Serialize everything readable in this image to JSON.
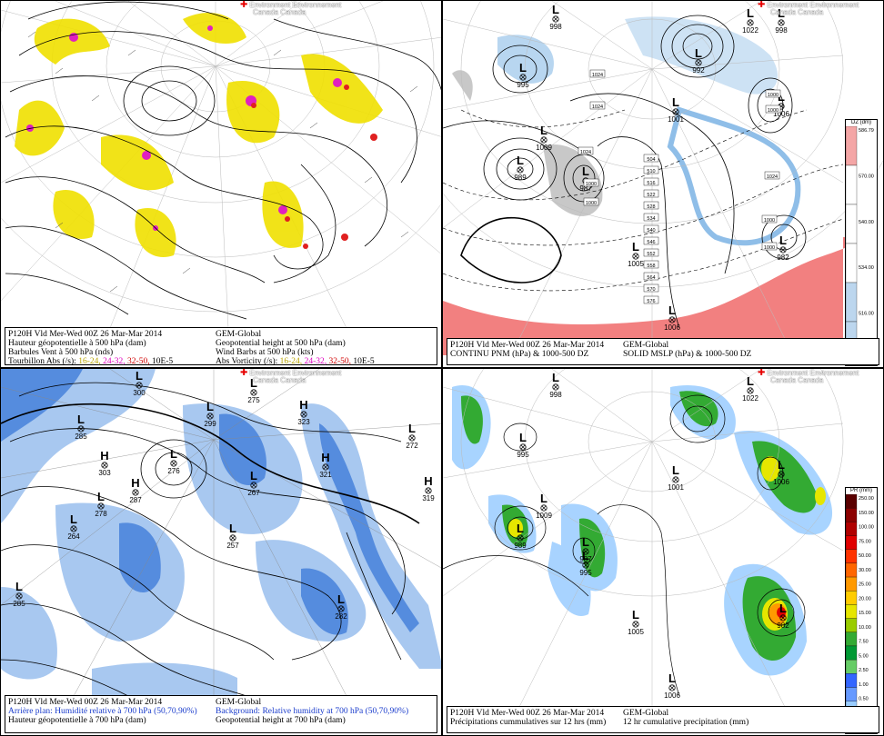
{
  "logo_text": {
    "line1": "Environment Environnement",
    "line2": "Canada Canada"
  },
  "panel1": {
    "caption": {
      "l1": "P120H Vld Mer-Wed 00Z 26 Mar-Mar 2014",
      "r1": "GEM-Global",
      "l2": "Hauteur géopotentielle à 500 hPa (dam)",
      "r2": "Geopotential height at 500 hPa (dam)",
      "l3": "Barbules Vent à 500 hPa (nds)",
      "r3": "Wind Barbs at 500 hPa  (kts)",
      "l4a": "Tourbillon Abs (/s):",
      "l4b": "16-24,",
      "l4c": "24-32,",
      "l4d": "32-50,",
      "l4e": "10E-5",
      "r4a": "Abs Vorticity (/s):",
      "r4b": "16-24,",
      "r4c": "24-32,",
      "r4d": "32-50,",
      "r4e": "10E-5"
    }
  },
  "panel2": {
    "caption": {
      "l1": "P120H Vld Mer-Wed 00Z 26 Mar-Mar 2014",
      "r1": "GEM-Global",
      "l2": "CONTINU PNM  (hPa) & 1000-500 DZ",
      "r2": "SOLID  MSLP (hPa) & 1000-500 DZ"
    },
    "scale_header": "DZ (dm)",
    "scale_ticks": [
      "586.79",
      "570.00",
      "540.00",
      "534.00",
      "516.00",
      "510.00"
    ],
    "scale_colors": [
      "#f4a6a6",
      "#ffffff",
      "#ffffff",
      "#ffffff",
      "#bcd6ee",
      "#bcd6ee"
    ],
    "highs": [],
    "lows": [
      {
        "t": "L",
        "v": "998"
      },
      {
        "t": "L",
        "v": "995"
      },
      {
        "t": "L",
        "v": "1022"
      },
      {
        "t": "L",
        "v": "998"
      },
      {
        "t": "L",
        "v": "992"
      },
      {
        "t": "L",
        "v": "1001"
      },
      {
        "t": "L",
        "v": "1006"
      },
      {
        "t": "L",
        "v": "1009"
      },
      {
        "t": "L",
        "v": "989"
      },
      {
        "t": "L",
        "v": "987"
      },
      {
        "t": "L",
        "v": "1005"
      },
      {
        "t": "L",
        "v": "1006"
      },
      {
        "t": "L",
        "v": "982"
      }
    ],
    "isobars": [
      "1024",
      "1024",
      "1024",
      "1024",
      "1000",
      "1000",
      "1000",
      "1000",
      "1000",
      "1000",
      "504",
      "510",
      "516",
      "522",
      "528",
      "534",
      "540",
      "546",
      "552",
      "558",
      "564",
      "570",
      "576"
    ]
  },
  "panel3": {
    "caption": {
      "l1": "P120H Vld Mer-Wed 00Z 26 Mar-Mar 2014",
      "r1": "GEM-Global",
      "l2": "Arrière plan: Humidité relative à 700 hPa (50,70,90%)",
      "r2": "Background: Relative humidity at 700 hPa (50,70,90%)",
      "l3": "Hauteur géopotentielle à 700 hPa (dam)",
      "r3": "Geopotential height at 700 hPa (dam)"
    },
    "centers": [
      {
        "t": "L",
        "v": "300"
      },
      {
        "t": "L",
        "v": "299"
      },
      {
        "t": "H",
        "v": "323"
      },
      {
        "t": "L",
        "v": "272"
      },
      {
        "t": "L",
        "v": "285"
      },
      {
        "t": "L",
        "v": "275"
      },
      {
        "t": "H",
        "v": "303"
      },
      {
        "t": "L",
        "v": "276"
      },
      {
        "t": "H",
        "v": "287"
      },
      {
        "t": "L",
        "v": "278"
      },
      {
        "t": "L",
        "v": "264"
      },
      {
        "t": "L",
        "v": "267"
      },
      {
        "t": "L",
        "v": "257"
      },
      {
        "t": "H",
        "v": "321"
      },
      {
        "t": "H",
        "v": "319"
      },
      {
        "t": "L",
        "v": "285"
      },
      {
        "t": "L",
        "v": "282"
      }
    ]
  },
  "panel4": {
    "caption": {
      "l1": "P120H Vld Mer-Wed 00Z 26 Mar-Mar 2014",
      "r1": "GEM-Global",
      "l2": "Précipitations cummulatives sur 12 hrs (mm)",
      "r2": "12 hr cumulative precipitation       (mm)"
    },
    "scale_header": "PR (mm)",
    "scale_ticks": [
      "250.00",
      "150.00",
      "100.00",
      "75.00",
      "50.00",
      "30.00",
      "25.00",
      "20.00",
      "15.00",
      "10.00",
      "7.50",
      "5.00",
      "2.50",
      "1.00",
      "0.50",
      "0.25",
      "0.00"
    ],
    "scale_colors": [
      "#5a0000",
      "#8b0000",
      "#b00000",
      "#e00000",
      "#ff3300",
      "#ff6600",
      "#ff9900",
      "#ffcc00",
      "#e6e600",
      "#99cc00",
      "#33aa33",
      "#009933",
      "#66cc66",
      "#3366ff",
      "#6699ff",
      "#99ccff",
      "#ffffff"
    ],
    "lows": [
      {
        "t": "L",
        "v": "998"
      },
      {
        "t": "L",
        "v": "995"
      },
      {
        "t": "L",
        "v": "1022"
      },
      {
        "t": "L",
        "v": "1001"
      },
      {
        "t": "L",
        "v": "1006"
      },
      {
        "t": "L",
        "v": "1009"
      },
      {
        "t": "L",
        "v": "989"
      },
      {
        "t": "L",
        "v": "987"
      },
      {
        "t": "L",
        "v": "995"
      },
      {
        "t": "L",
        "v": "1005"
      },
      {
        "t": "L",
        "v": "1006"
      },
      {
        "t": "L",
        "v": "982"
      }
    ]
  },
  "colors": {
    "vort_yellow": "#f0e000",
    "vort_magenta": "#e020c0",
    "vort_red": "#e02020",
    "rh_blue": "#3a78d8",
    "rh_light": "#a8c8f0",
    "dz_red": "#f28080",
    "dz_blue": "#b8d6f0"
  }
}
